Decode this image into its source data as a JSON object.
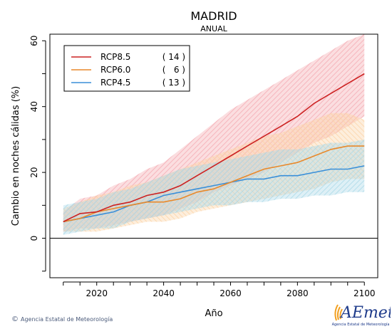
{
  "chart_data": {
    "type": "line",
    "title": "MADRID",
    "subtitle": "ANUAL",
    "xlabel": "Año",
    "ylabel": "Cambio en noches cálidas (%)",
    "xlim": [
      2006,
      2104
    ],
    "ylim": [
      -12,
      62
    ],
    "xticks": [
      2020,
      2040,
      2060,
      2080,
      2100
    ],
    "yticks": [
      0,
      20,
      40,
      60
    ],
    "zero_line": true,
    "legend_position": "top-left",
    "series": [
      {
        "name": "RCP8.5",
        "count": "( 14 )",
        "color": "#cc2222",
        "band_color": "#f4a8b0",
        "x": [
          2010,
          2015,
          2020,
          2025,
          2030,
          2035,
          2040,
          2045,
          2050,
          2055,
          2060,
          2065,
          2070,
          2075,
          2080,
          2085,
          2090,
          2095,
          2100
        ],
        "y": [
          5,
          7.5,
          8,
          10,
          11,
          13,
          14,
          16,
          19,
          22,
          25,
          28,
          31,
          34,
          37,
          41,
          44,
          47,
          50
        ],
        "lower": [
          2,
          3,
          3,
          4,
          5,
          6,
          7,
          9,
          11,
          14,
          16,
          18,
          20,
          23,
          26,
          29,
          31,
          34,
          37
        ],
        "upper": [
          8,
          12,
          13,
          16,
          18,
          21,
          23,
          27,
          31,
          35,
          39,
          42,
          45,
          48,
          51,
          54,
          57,
          60,
          62
        ]
      },
      {
        "name": "RCP6.0",
        "count": "(   6 )",
        "color": "#e8892b",
        "band_color": "#fcd2a4",
        "x": [
          2010,
          2015,
          2020,
          2025,
          2030,
          2035,
          2040,
          2045,
          2050,
          2055,
          2060,
          2065,
          2070,
          2075,
          2080,
          2085,
          2090,
          2095,
          2100
        ],
        "y": [
          5,
          6,
          8,
          9,
          10,
          11,
          11,
          12,
          14,
          15,
          17,
          19,
          21,
          22,
          23,
          25,
          27,
          28,
          28
        ],
        "lower": [
          2,
          2,
          2,
          3,
          4,
          5,
          5,
          6,
          8,
          9,
          10,
          11,
          12,
          13,
          14,
          15,
          17,
          18,
          18
        ],
        "upper": [
          9,
          11,
          13,
          14,
          16,
          17,
          19,
          21,
          23,
          25,
          27,
          29,
          31,
          32,
          34,
          36,
          38,
          38,
          36
        ]
      },
      {
        "name": "RCP4.5",
        "count": "( 13 )",
        "color": "#3a8fd8",
        "band_color": "#a8d8e8",
        "x": [
          2010,
          2015,
          2020,
          2025,
          2030,
          2035,
          2040,
          2045,
          2050,
          2055,
          2060,
          2065,
          2070,
          2075,
          2080,
          2085,
          2090,
          2095,
          2100
        ],
        "y": [
          5,
          6,
          7,
          8,
          10,
          11,
          13,
          14,
          15,
          16,
          17,
          18,
          18,
          19,
          19,
          20,
          21,
          21,
          22
        ],
        "lower": [
          1,
          2,
          3,
          3,
          5,
          6,
          7,
          8,
          9,
          10,
          10,
          11,
          11,
          12,
          12,
          13,
          13,
          14,
          14
        ],
        "upper": [
          10,
          11,
          12,
          14,
          15,
          17,
          19,
          21,
          22,
          23,
          24,
          25,
          26,
          27,
          27,
          28,
          29,
          29,
          30
        ]
      }
    ]
  },
  "footer": {
    "copyright_symbol": "©",
    "agency_text": "Agencia Estatal de Meteorología"
  },
  "logo": {
    "brand": "AEmet",
    "subtitle": "Agencia Estatal de Meteorología",
    "colors": [
      "#1d3a8a",
      "#f2a020"
    ]
  }
}
